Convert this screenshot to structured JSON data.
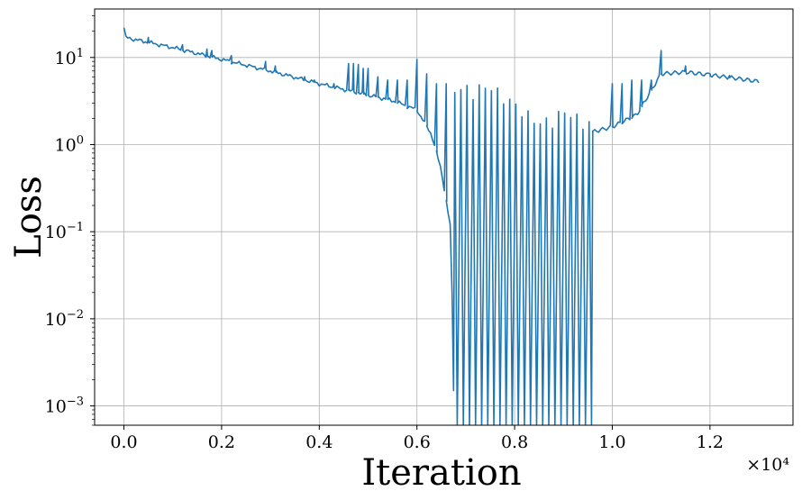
{
  "chart_data": {
    "type": "line",
    "title": "",
    "xlabel": "Iteration",
    "ylabel": "Loss",
    "x_multiplier_label": "×10⁴",
    "x_scale": "linear",
    "y_scale": "log",
    "xlim": [
      -0.06,
      1.37
    ],
    "ylim": [
      0.0006,
      36
    ],
    "grid": true,
    "legend": "none",
    "line_color": "#1f77b4",
    "x_ticks": [
      {
        "value": 0.0,
        "label": "0.0"
      },
      {
        "value": 0.2,
        "label": "0.2"
      },
      {
        "value": 0.4,
        "label": "0.4"
      },
      {
        "value": 0.6,
        "label": "0.6"
      },
      {
        "value": 0.8,
        "label": "0.8"
      },
      {
        "value": 1.0,
        "label": "1.0"
      },
      {
        "value": 1.2,
        "label": "1.2"
      }
    ],
    "y_ticks": [
      {
        "value": 0.001,
        "base": "10",
        "exp": "−3"
      },
      {
        "value": 0.01,
        "base": "10",
        "exp": "−2"
      },
      {
        "value": 0.1,
        "base": "10",
        "exp": "−1"
      },
      {
        "value": 1,
        "base": "10",
        "exp": "0"
      },
      {
        "value": 10,
        "base": "10",
        "exp": "1"
      }
    ],
    "series": [
      {
        "baseline": {
          "x": [
            0.0,
            0.002,
            0.1,
            0.2,
            0.3,
            0.4,
            0.5,
            0.55,
            0.6,
            0.63,
            0.65,
            0.67,
            0.675
          ],
          "y": [
            22,
            17,
            13,
            9.5,
            7.0,
            5.0,
            3.7,
            3.2,
            2.5,
            1.3,
            0.5,
            0.1,
            0.0015
          ]
        },
        "oscillation": {
          "x_start": 0.675,
          "x_end": 0.96,
          "period": 0.0125,
          "upper": {
            "x": [
              0.675,
              0.75,
              0.85,
              0.9,
              0.96
            ],
            "y": [
              4.0,
              4.2,
              1.6,
              2.2,
              1.5
            ]
          },
          "lower": 0.0006
        },
        "tail": {
          "x": [
            0.96,
            1.0,
            1.05,
            1.1,
            1.15,
            1.2,
            1.25,
            1.3
          ],
          "y": [
            1.4,
            1.6,
            2.2,
            6.5,
            6.8,
            6.3,
            5.8,
            5.3
          ]
        },
        "spikes": [
          {
            "x": 0.05,
            "y": 17
          },
          {
            "x": 0.12,
            "y": 14
          },
          {
            "x": 0.17,
            "y": 12.5
          },
          {
            "x": 0.18,
            "y": 12
          },
          {
            "x": 0.22,
            "y": 10.5
          },
          {
            "x": 0.29,
            "y": 9
          },
          {
            "x": 0.31,
            "y": 8
          },
          {
            "x": 0.37,
            "y": 6
          },
          {
            "x": 0.39,
            "y": 5.5
          },
          {
            "x": 0.43,
            "y": 5.0
          },
          {
            "x": 0.46,
            "y": 8.5
          },
          {
            "x": 0.47,
            "y": 8.5
          },
          {
            "x": 0.48,
            "y": 8.3
          },
          {
            "x": 0.49,
            "y": 7.5
          },
          {
            "x": 0.5,
            "y": 7.5
          },
          {
            "x": 0.52,
            "y": 6.0
          },
          {
            "x": 0.54,
            "y": 5.5
          },
          {
            "x": 0.56,
            "y": 5.5
          },
          {
            "x": 0.58,
            "y": 5.5
          },
          {
            "x": 0.6,
            "y": 9.5
          },
          {
            "x": 0.62,
            "y": 6.5
          },
          {
            "x": 0.64,
            "y": 5.0
          },
          {
            "x": 0.66,
            "y": 5.0
          },
          {
            "x": 0.7,
            "y": 10.0
          },
          {
            "x": 1.0,
            "y": 5.0
          },
          {
            "x": 1.02,
            "y": 5.0
          },
          {
            "x": 1.04,
            "y": 5.5
          },
          {
            "x": 1.06,
            "y": 5.5
          },
          {
            "x": 1.08,
            "y": 5.5
          },
          {
            "x": 1.1,
            "y": 12.0
          },
          {
            "x": 1.15,
            "y": 8.0
          },
          {
            "x": 1.2,
            "y": 6.5
          },
          {
            "x": 1.24,
            "y": 6.2
          }
        ]
      }
    ]
  }
}
